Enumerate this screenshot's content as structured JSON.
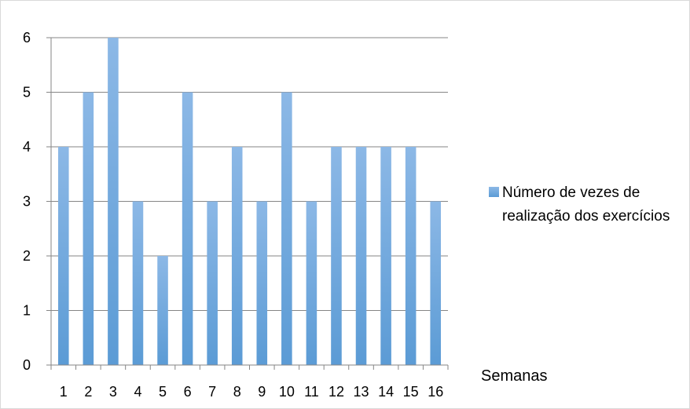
{
  "chart_data": {
    "type": "bar",
    "categories": [
      "1",
      "2",
      "3",
      "4",
      "5",
      "6",
      "7",
      "8",
      "9",
      "10",
      "11",
      "12",
      "13",
      "14",
      "15",
      "16"
    ],
    "series": [
      {
        "name": "Número de vezes de realização dos exercícios",
        "values": [
          4,
          5,
          6,
          3,
          2,
          5,
          3,
          4,
          3,
          5,
          3,
          4,
          4,
          4,
          4,
          3
        ]
      }
    ],
    "xlabel": "Semanas",
    "ylabel": "",
    "ylim": [
      0,
      6
    ],
    "yticks": [
      0,
      1,
      2,
      3,
      4,
      5,
      6
    ],
    "grid": true,
    "legend_position": "right",
    "colors": {
      "bar_top": "#8cb8e6",
      "bar_bottom": "#5b9bd5",
      "grid": "#868686",
      "axis": "#868686"
    }
  }
}
